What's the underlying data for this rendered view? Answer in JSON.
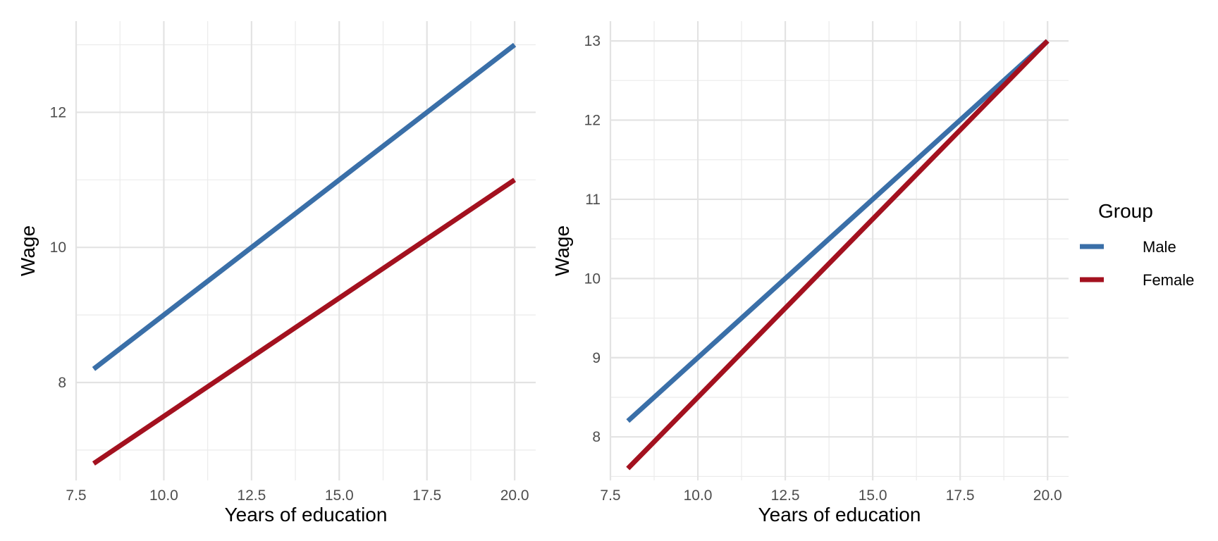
{
  "chart_data": [
    {
      "type": "line",
      "title": "",
      "xlabel": "Years of education",
      "ylabel": "Wage",
      "xlim": [
        7.5,
        20.6
      ],
      "ylim": [
        6.55,
        13.35
      ],
      "x_ticks": [
        7.5,
        10.0,
        12.5,
        15.0,
        17.5,
        20.0
      ],
      "x_tick_labels": [
        "7.5",
        "10.0",
        "12.5",
        "15.0",
        "17.5",
        "20.0"
      ],
      "y_ticks": [
        8,
        10,
        12
      ],
      "y_tick_labels": [
        "8",
        "10",
        "12"
      ],
      "grid": true,
      "series": [
        {
          "name": "Male",
          "color": "#3a6fa8",
          "x": [
            8,
            20
          ],
          "y": [
            8.2,
            13.0
          ]
        },
        {
          "name": "Female",
          "color": "#a3111f",
          "x": [
            8,
            20
          ],
          "y": [
            6.8,
            11.0
          ]
        }
      ]
    },
    {
      "type": "line",
      "title": "",
      "xlabel": "Years of education",
      "ylabel": "Wage",
      "xlim": [
        7.5,
        20.6
      ],
      "ylim": [
        7.45,
        13.25
      ],
      "x_ticks": [
        7.5,
        10.0,
        12.5,
        15.0,
        17.5,
        20.0
      ],
      "x_tick_labels": [
        "7.5",
        "10.0",
        "12.5",
        "15.0",
        "17.5",
        "20.0"
      ],
      "y_ticks": [
        8,
        9,
        10,
        11,
        12,
        13
      ],
      "y_tick_labels": [
        "8",
        "9",
        "10",
        "11",
        "12",
        "13"
      ],
      "grid": true,
      "series": [
        {
          "name": "Male",
          "color": "#3a6fa8",
          "x": [
            8,
            20
          ],
          "y": [
            8.2,
            13.0
          ]
        },
        {
          "name": "Female",
          "color": "#a3111f",
          "x": [
            8,
            20
          ],
          "y": [
            7.6,
            13.0
          ]
        }
      ]
    }
  ],
  "legend": {
    "title": "Group",
    "placement": "right",
    "items": [
      {
        "label": "Male",
        "color": "#3a6fa8"
      },
      {
        "label": "Female",
        "color": "#a3111f"
      }
    ]
  }
}
